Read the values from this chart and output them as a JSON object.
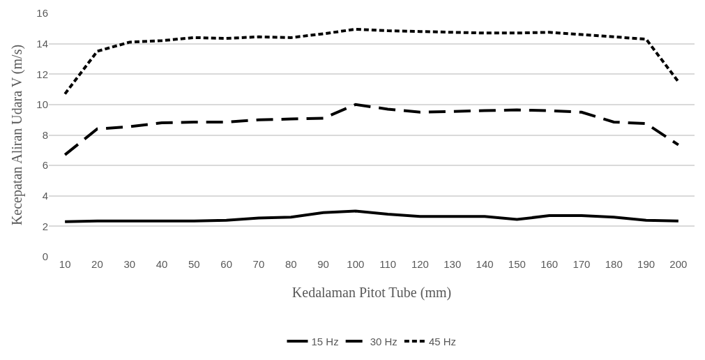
{
  "chart_data": {
    "type": "line",
    "xlabel": "Kedalaman Pitot Tube (mm)",
    "ylabel": "Kecepatan Aliran Udara V (m/s)",
    "categories": [
      "10",
      "20",
      "30",
      "40",
      "50",
      "60",
      "70",
      "80",
      "90",
      "100",
      "110",
      "120",
      "130",
      "140",
      "150",
      "160",
      "170",
      "180",
      "190",
      "200"
    ],
    "series": [
      {
        "name": "15 Hz",
        "color": "#000000",
        "line_style": "solid",
        "values": [
          2.3,
          2.35,
          2.35,
          2.35,
          2.35,
          2.4,
          2.55,
          2.6,
          2.9,
          3.0,
          2.8,
          2.65,
          2.65,
          2.65,
          2.45,
          2.7,
          2.7,
          2.6,
          2.4,
          2.35
        ]
      },
      {
        "name": "30 Hz",
        "color": "#000000",
        "line_style": "dashed",
        "values": [
          6.7,
          8.4,
          8.55,
          8.8,
          8.85,
          8.85,
          9.0,
          9.05,
          9.1,
          10.0,
          9.7,
          9.5,
          9.55,
          9.6,
          9.65,
          9.6,
          9.5,
          8.85,
          8.75,
          7.35
        ]
      },
      {
        "name": "45 Hz",
        "color": "#000000",
        "line_style": "dotted",
        "values": [
          10.7,
          13.5,
          14.1,
          14.2,
          14.4,
          14.35,
          14.45,
          14.4,
          14.65,
          14.95,
          14.85,
          14.8,
          14.75,
          14.7,
          14.7,
          14.75,
          14.6,
          14.45,
          14.3,
          11.5
        ]
      }
    ],
    "ylim": [
      0,
      16
    ],
    "yticks": [
      0,
      2,
      4,
      6,
      8,
      10,
      12,
      14,
      16
    ],
    "grid": "y",
    "legend": "bottom",
    "marker": "none"
  }
}
